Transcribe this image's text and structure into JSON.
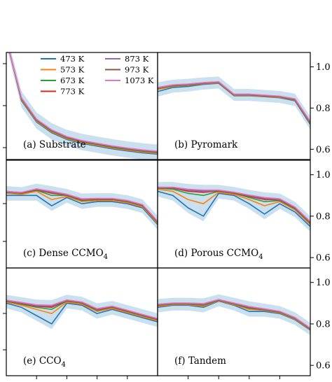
{
  "colors": {
    "473 K": "#1f77b4",
    "573 K": "#ff7f0e",
    "673 K": "#2ca02c",
    "773 K": "#d62728",
    "873 K": "#9467bd",
    "973 K": "#8c564b",
    "1073 K": "#e377c2",
    "band": "#a9cce3"
  },
  "legend": {
    "entries": [
      "473 K",
      "573 K",
      "673 K",
      "773 K",
      "873 K",
      "973 K",
      "1073 K"
    ],
    "placement": "top-left of panel (a)"
  },
  "chart_data": [
    {
      "type": "line",
      "panel": "a",
      "label": "(a) Substrate",
      "x": [
        0,
        2,
        4,
        6,
        8,
        10,
        12,
        14,
        16,
        18,
        20
      ],
      "xlim": [
        0,
        20
      ],
      "ylim": [
        0.6,
        1.0
      ],
      "yticks": [],
      "grid": false,
      "series": [
        {
          "name": "473 K",
          "values": [
            1.05,
            0.82,
            0.74,
            0.7,
            0.675,
            0.66,
            0.65,
            0.64,
            0.632,
            0.625,
            0.62
          ]
        },
        {
          "name": "573 K",
          "values": [
            1.05,
            0.823,
            0.743,
            0.703,
            0.678,
            0.663,
            0.653,
            0.643,
            0.635,
            0.628,
            0.623
          ]
        },
        {
          "name": "673 K",
          "values": [
            1.05,
            0.826,
            0.746,
            0.706,
            0.681,
            0.666,
            0.656,
            0.646,
            0.638,
            0.631,
            0.626
          ]
        },
        {
          "name": "773 K",
          "values": [
            1.05,
            0.828,
            0.748,
            0.708,
            0.683,
            0.668,
            0.658,
            0.648,
            0.64,
            0.633,
            0.628
          ]
        },
        {
          "name": "873 K",
          "values": [
            1.05,
            0.829,
            0.749,
            0.709,
            0.684,
            0.669,
            0.659,
            0.649,
            0.641,
            0.634,
            0.629
          ]
        },
        {
          "name": "973 K",
          "values": [
            1.05,
            0.83,
            0.75,
            0.71,
            0.685,
            0.67,
            0.66,
            0.65,
            0.642,
            0.635,
            0.63
          ]
        },
        {
          "name": "1073 K",
          "values": [
            1.05,
            0.831,
            0.751,
            0.711,
            0.686,
            0.671,
            0.661,
            0.651,
            0.643,
            0.636,
            0.631
          ]
        }
      ]
    },
    {
      "type": "line",
      "panel": "b",
      "label": "(b) Pyromark",
      "x": [
        0,
        2,
        4,
        6,
        8,
        10,
        12,
        14,
        16,
        18,
        20
      ],
      "xlim": [
        0,
        20
      ],
      "ylim": [
        0.55,
        1.07
      ],
      "yticks": [
        0.6,
        0.8,
        1.0
      ],
      "yticklabels": [
        "0.6",
        "0.8",
        "1.0"
      ],
      "grid": false,
      "series": [
        {
          "name": "473 K",
          "values": [
            0.88,
            0.9,
            0.905,
            0.915,
            0.92,
            0.86,
            0.86,
            0.855,
            0.85,
            0.835,
            0.72
          ]
        },
        {
          "name": "573 K",
          "values": [
            0.89,
            0.905,
            0.91,
            0.918,
            0.922,
            0.862,
            0.862,
            0.857,
            0.852,
            0.838,
            0.725
          ]
        },
        {
          "name": "673 K",
          "values": [
            0.895,
            0.908,
            0.912,
            0.92,
            0.924,
            0.864,
            0.864,
            0.859,
            0.854,
            0.84,
            0.728
          ]
        },
        {
          "name": "773 K",
          "values": [
            0.897,
            0.91,
            0.914,
            0.921,
            0.925,
            0.865,
            0.865,
            0.86,
            0.855,
            0.841,
            0.73
          ]
        },
        {
          "name": "873 K",
          "values": [
            0.898,
            0.911,
            0.915,
            0.922,
            0.926,
            0.866,
            0.866,
            0.861,
            0.856,
            0.842,
            0.731
          ]
        },
        {
          "name": "973 K",
          "values": [
            0.9,
            0.912,
            0.916,
            0.923,
            0.927,
            0.867,
            0.867,
            0.862,
            0.857,
            0.843,
            0.732
          ]
        },
        {
          "name": "1073 K",
          "values": [
            0.9,
            0.913,
            0.917,
            0.924,
            0.928,
            0.868,
            0.868,
            0.863,
            0.858,
            0.845,
            0.735
          ]
        }
      ]
    },
    {
      "type": "line",
      "panel": "c",
      "label": "(c) Dense CCMO",
      "label_sub": "4",
      "x": [
        0,
        2,
        4,
        6,
        8,
        10,
        12,
        14,
        16,
        18,
        20
      ],
      "xlim": [
        0,
        20
      ],
      "ylim": [
        0.55,
        1.07
      ],
      "yticks": [],
      "grid": false,
      "series": [
        {
          "name": "473 K",
          "values": [
            0.9,
            0.9,
            0.9,
            0.85,
            0.89,
            0.86,
            0.87,
            0.87,
            0.86,
            0.84,
            0.76
          ]
        },
        {
          "name": "573 K",
          "values": [
            0.91,
            0.905,
            0.92,
            0.88,
            0.895,
            0.87,
            0.875,
            0.875,
            0.865,
            0.845,
            0.765
          ]
        },
        {
          "name": "673 K",
          "values": [
            0.915,
            0.91,
            0.925,
            0.9,
            0.9,
            0.875,
            0.88,
            0.88,
            0.87,
            0.85,
            0.77
          ]
        },
        {
          "name": "773 K",
          "values": [
            0.917,
            0.912,
            0.928,
            0.91,
            0.902,
            0.878,
            0.882,
            0.882,
            0.872,
            0.852,
            0.772
          ]
        },
        {
          "name": "873 K",
          "values": [
            0.918,
            0.913,
            0.93,
            0.915,
            0.904,
            0.88,
            0.884,
            0.884,
            0.874,
            0.854,
            0.774
          ]
        },
        {
          "name": "973 K",
          "values": [
            0.92,
            0.914,
            0.931,
            0.918,
            0.905,
            0.882,
            0.885,
            0.885,
            0.875,
            0.855,
            0.775
          ]
        },
        {
          "name": "1073 K",
          "values": [
            0.92,
            0.915,
            0.932,
            0.92,
            0.906,
            0.884,
            0.886,
            0.886,
            0.876,
            0.856,
            0.776
          ]
        }
      ]
    },
    {
      "type": "line",
      "panel": "d",
      "label": "(d) Porous CCMO",
      "label_sub": "4",
      "x": [
        0,
        2,
        4,
        6,
        8,
        10,
        12,
        14,
        16,
        18,
        20
      ],
      "xlim": [
        0,
        20
      ],
      "ylim": [
        0.55,
        1.07
      ],
      "yticks": [
        0.6,
        0.8,
        1.0
      ],
      "yticklabels": [
        "0.6",
        "0.8",
        "1.0"
      ],
      "grid": false,
      "series": [
        {
          "name": "473 K",
          "values": [
            0.92,
            0.9,
            0.84,
            0.8,
            0.91,
            0.9,
            0.86,
            0.81,
            0.86,
            0.82,
            0.75
          ]
        },
        {
          "name": "573 K",
          "values": [
            0.93,
            0.92,
            0.88,
            0.86,
            0.915,
            0.905,
            0.88,
            0.85,
            0.87,
            0.83,
            0.76
          ]
        },
        {
          "name": "673 K",
          "values": [
            0.935,
            0.93,
            0.91,
            0.9,
            0.92,
            0.91,
            0.89,
            0.87,
            0.875,
            0.835,
            0.765
          ]
        },
        {
          "name": "773 K",
          "values": [
            0.937,
            0.935,
            0.92,
            0.915,
            0.922,
            0.912,
            0.895,
            0.88,
            0.878,
            0.838,
            0.768
          ]
        },
        {
          "name": "873 K",
          "values": [
            0.938,
            0.937,
            0.925,
            0.92,
            0.924,
            0.914,
            0.898,
            0.885,
            0.88,
            0.84,
            0.77
          ]
        },
        {
          "name": "973 K",
          "values": [
            0.94,
            0.938,
            0.928,
            0.924,
            0.925,
            0.915,
            0.9,
            0.888,
            0.882,
            0.842,
            0.772
          ]
        },
        {
          "name": "1073 K",
          "values": [
            0.94,
            0.94,
            0.93,
            0.926,
            0.926,
            0.916,
            0.902,
            0.89,
            0.884,
            0.844,
            0.774
          ]
        }
      ]
    },
    {
      "type": "line",
      "panel": "e",
      "label": "(e) CCO",
      "label_sub": "4",
      "x": [
        0,
        2,
        4,
        6,
        8,
        10,
        12,
        14,
        16,
        18,
        20
      ],
      "xlim": [
        0,
        20
      ],
      "ylim": [
        0.55,
        1.07
      ],
      "yticks": [],
      "grid": false,
      "series": [
        {
          "name": "473 K",
          "values": [
            0.9,
            0.88,
            0.84,
            0.8,
            0.9,
            0.89,
            0.85,
            0.87,
            0.85,
            0.83,
            0.81
          ]
        },
        {
          "name": "573 K",
          "values": [
            0.905,
            0.89,
            0.87,
            0.85,
            0.905,
            0.895,
            0.86,
            0.875,
            0.855,
            0.835,
            0.815
          ]
        },
        {
          "name": "673 K",
          "values": [
            0.91,
            0.895,
            0.88,
            0.87,
            0.91,
            0.9,
            0.865,
            0.88,
            0.86,
            0.84,
            0.82
          ]
        },
        {
          "name": "773 K",
          "values": [
            0.912,
            0.898,
            0.885,
            0.88,
            0.912,
            0.902,
            0.868,
            0.882,
            0.862,
            0.842,
            0.822
          ]
        },
        {
          "name": "873 K",
          "values": [
            0.913,
            0.9,
            0.888,
            0.885,
            0.914,
            0.904,
            0.87,
            0.884,
            0.864,
            0.844,
            0.824
          ]
        },
        {
          "name": "973 K",
          "values": [
            0.914,
            0.902,
            0.89,
            0.888,
            0.915,
            0.905,
            0.872,
            0.885,
            0.865,
            0.845,
            0.825
          ]
        },
        {
          "name": "1073 K",
          "values": [
            0.915,
            0.904,
            0.892,
            0.89,
            0.916,
            0.906,
            0.874,
            0.886,
            0.866,
            0.846,
            0.826
          ]
        }
      ]
    },
    {
      "type": "line",
      "panel": "f",
      "label": "(f) Tandem",
      "x": [
        0,
        2,
        4,
        6,
        8,
        10,
        12,
        14,
        16,
        18,
        20
      ],
      "xlim": [
        0,
        20
      ],
      "ylim": [
        0.55,
        1.07
      ],
      "yticks": [
        0.6,
        0.8,
        1.0
      ],
      "yticklabels": [
        "0.6",
        "0.8",
        "1.0"
      ],
      "grid": false,
      "series": [
        {
          "name": "473 K",
          "values": [
            0.88,
            0.89,
            0.89,
            0.88,
            0.91,
            0.89,
            0.86,
            0.86,
            0.85,
            0.82,
            0.77
          ]
        },
        {
          "name": "573 K",
          "values": [
            0.885,
            0.893,
            0.893,
            0.885,
            0.912,
            0.893,
            0.87,
            0.865,
            0.853,
            0.823,
            0.772
          ]
        },
        {
          "name": "673 K",
          "values": [
            0.89,
            0.896,
            0.896,
            0.89,
            0.914,
            0.896,
            0.875,
            0.868,
            0.856,
            0.826,
            0.775
          ]
        },
        {
          "name": "773 K",
          "values": [
            0.892,
            0.898,
            0.898,
            0.893,
            0.915,
            0.898,
            0.878,
            0.87,
            0.858,
            0.828,
            0.777
          ]
        },
        {
          "name": "873 K",
          "values": [
            0.893,
            0.899,
            0.899,
            0.895,
            0.916,
            0.899,
            0.88,
            0.871,
            0.859,
            0.829,
            0.778
          ]
        },
        {
          "name": "973 K",
          "values": [
            0.894,
            0.9,
            0.9,
            0.897,
            0.917,
            0.9,
            0.882,
            0.872,
            0.86,
            0.83,
            0.779
          ]
        },
        {
          "name": "1073 K",
          "values": [
            0.895,
            0.901,
            0.901,
            0.898,
            0.918,
            0.901,
            0.884,
            0.873,
            0.861,
            0.831,
            0.78
          ]
        }
      ]
    }
  ]
}
